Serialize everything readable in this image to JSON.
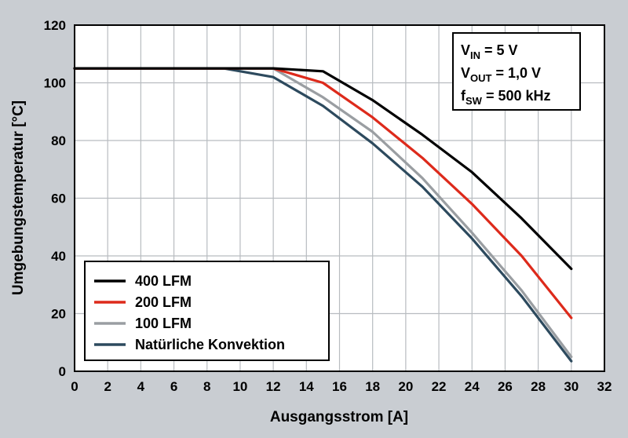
{
  "chart_data": {
    "type": "line",
    "xlabel": "Ausgangsstrom [A]",
    "ylabel": "Umgebungstemperatur [°C]",
    "xlim": [
      0,
      32
    ],
    "ylim": [
      0,
      120
    ],
    "xticks": [
      "0",
      "2",
      "4",
      "6",
      "8",
      "10",
      "12",
      "14",
      "16",
      "18",
      "20",
      "22",
      "24",
      "26",
      "28",
      "30",
      "32"
    ],
    "yticks": [
      "0",
      "20",
      "40",
      "60",
      "80",
      "100",
      "120"
    ],
    "grid": true,
    "legend_position": "bottom-left",
    "annotations": {
      "vin": {
        "main": "V",
        "sub": "IN",
        "rest": " = 5 V"
      },
      "vout": {
        "main": "V",
        "sub": "OUT",
        "rest": " = 1,0 V"
      },
      "fsw": {
        "main": "f",
        "sub": "SW",
        "rest": " = 500 kHz"
      }
    },
    "series": [
      {
        "name": "400 LFM",
        "color": "#000000",
        "points": [
          [
            0,
            105
          ],
          [
            12,
            105
          ],
          [
            15,
            104
          ],
          [
            18,
            94
          ],
          [
            21,
            82
          ],
          [
            24,
            69
          ],
          [
            27,
            53
          ],
          [
            30,
            35.5
          ]
        ]
      },
      {
        "name": "200 LFM",
        "color": "#dd2a1b",
        "points": [
          [
            0,
            105
          ],
          [
            12,
            105
          ],
          [
            15,
            100
          ],
          [
            18,
            88
          ],
          [
            21,
            74
          ],
          [
            24,
            58
          ],
          [
            27,
            40
          ],
          [
            30,
            18.5
          ]
        ]
      },
      {
        "name": "100 LFM",
        "color": "#9a9ea2",
        "points": [
          [
            0,
            105
          ],
          [
            12,
            105
          ],
          [
            15,
            95
          ],
          [
            18,
            83
          ],
          [
            21,
            67
          ],
          [
            24,
            48
          ],
          [
            27,
            28
          ],
          [
            30,
            5
          ]
        ]
      },
      {
        "name": "Natürliche Konvektion",
        "color": "#2d4a5e",
        "points": [
          [
            0,
            105
          ],
          [
            9,
            105
          ],
          [
            12,
            102
          ],
          [
            15,
            92
          ],
          [
            18,
            79
          ],
          [
            21,
            64
          ],
          [
            24,
            46
          ],
          [
            27,
            26
          ],
          [
            30,
            3.5
          ]
        ]
      }
    ]
  }
}
